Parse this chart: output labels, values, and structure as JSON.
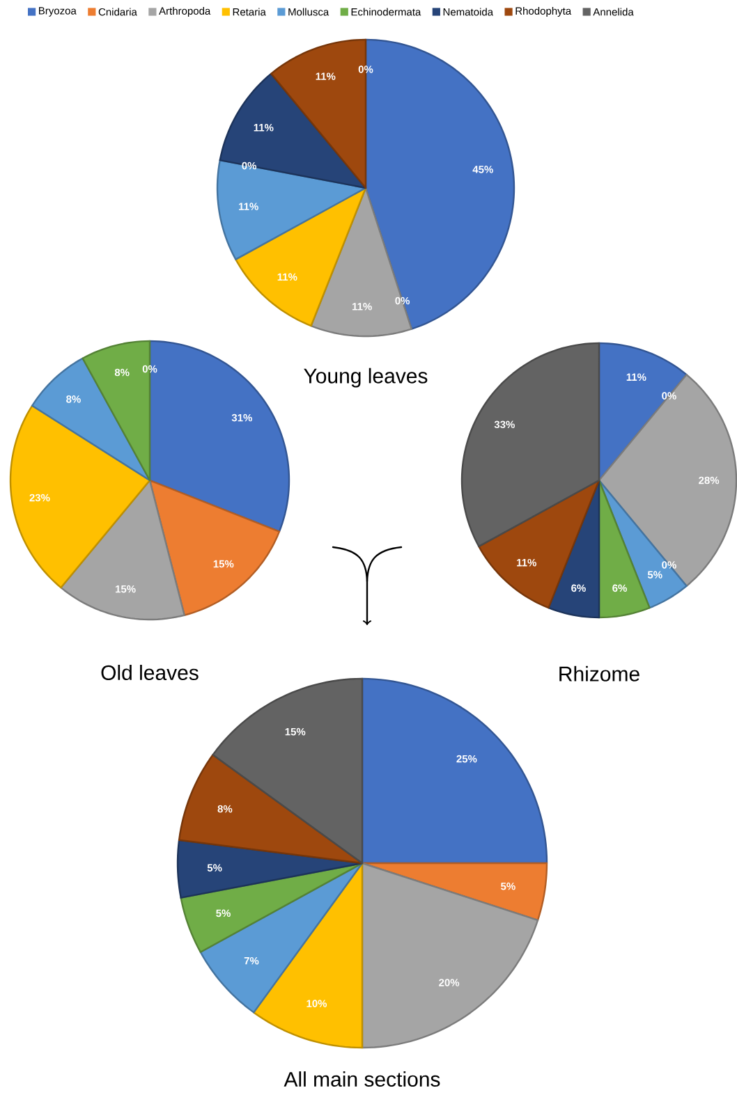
{
  "chart_data": [
    {
      "type": "pie",
      "title": "Young leaves",
      "legend": "top",
      "categories": [
        "Bryozoa",
        "Cnidaria",
        "Arthropoda",
        "Retaria",
        "Mollusca",
        "Echinodermata",
        "Nematoida",
        "Rhodophyta",
        "Annelida"
      ],
      "values": [
        45,
        0,
        11,
        11,
        11,
        0,
        11,
        11,
        0
      ],
      "value_labels": [
        "45%",
        "0%",
        "11%",
        "11%",
        "11%",
        "0%",
        "11%",
        "11%",
        "0%"
      ],
      "colors": [
        "#4472c4",
        "#ed7d31",
        "#a5a5a5",
        "#ffc000",
        "#5b9bd5",
        "#70ad47",
        "#264478",
        "#9e480e",
        "#636363"
      ]
    },
    {
      "type": "pie",
      "title": "Old leaves",
      "categories": [
        null,
        null,
        null,
        null,
        null,
        null,
        null,
        null,
        null
      ],
      "values": [
        31,
        15,
        15,
        23,
        8,
        8,
        0,
        0,
        0
      ],
      "value_labels": [
        "31%",
        "15%",
        "15%",
        "23%",
        "8%",
        "8%",
        "0%",
        null,
        null
      ],
      "colors": [
        "#4472c4",
        "#ed7d31",
        "#a5a5a5",
        "#ffc000",
        "#5b9bd5",
        "#70ad47",
        "#264478",
        "#9e480e",
        "#636363"
      ]
    },
    {
      "type": "pie",
      "title": "Rhizome",
      "categories": [
        null,
        null,
        null,
        null,
        null,
        null,
        null,
        null,
        null
      ],
      "values": [
        11,
        0,
        28,
        0,
        5,
        6,
        6,
        11,
        33
      ],
      "value_labels": [
        "11%",
        "0%",
        "28%",
        "0%",
        "5%",
        "6%",
        "6%",
        "11%",
        "33%"
      ],
      "colors": [
        "#4472c4",
        "#ed7d31",
        "#a5a5a5",
        "#ffc000",
        "#5b9bd5",
        "#70ad47",
        "#264478",
        "#9e480e",
        "#636363"
      ]
    },
    {
      "type": "pie",
      "title": "All main sections",
      "categories": [
        null,
        null,
        null,
        null,
        null,
        null,
        null,
        null,
        null
      ],
      "values": [
        25,
        5,
        20,
        10,
        7,
        5,
        5,
        8,
        15
      ],
      "value_labels": [
        "25%",
        "5%",
        "20%",
        "10%",
        "7%",
        "5%",
        "5%",
        "8%",
        "15%"
      ],
      "colors": [
        "#4472c4",
        "#ed7d31",
        "#a5a5a5",
        "#ffc000",
        "#5b9bd5",
        "#70ad47",
        "#264478",
        "#9e480e",
        "#636363"
      ]
    }
  ]
}
